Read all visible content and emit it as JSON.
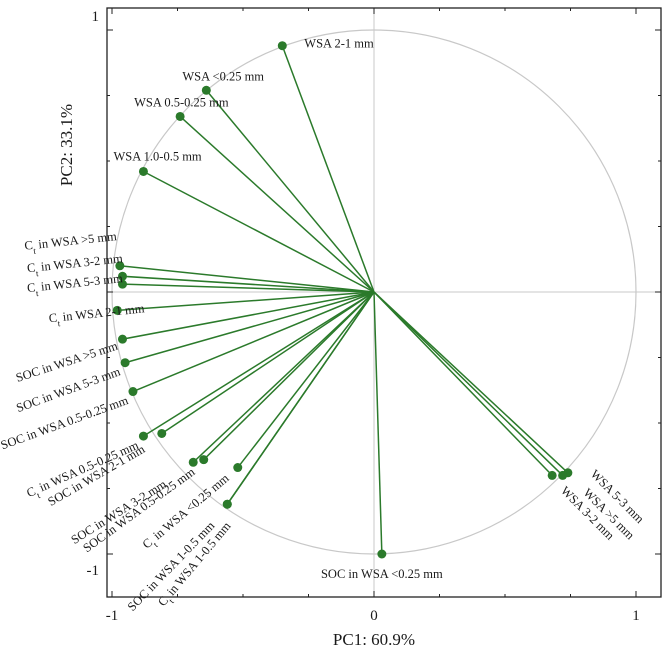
{
  "chart_data": {
    "type": "scatter",
    "subtype": "pca-loadings-biplot",
    "title": "",
    "xlabel": "PC1: 60.9%",
    "ylabel": "PC2: 33.1%",
    "xlim": [
      -1.05,
      1.05
    ],
    "ylim": [
      -1.05,
      1.05
    ],
    "x_ticks": [
      "-1",
      "0",
      "1"
    ],
    "y_ticks": [
      "1",
      "-1"
    ],
    "grid": false,
    "unit_circle": true,
    "colors": {
      "vector": "#2b7a2b",
      "point": "#2b7a2b",
      "circle": "#c8c8c8",
      "zero_lines": "#c8c8c8"
    },
    "points": [
      {
        "label": "WSA 2-1 mm",
        "x": -0.35,
        "y": 0.94
      },
      {
        "label": "WSA <0.25 mm",
        "x": -0.64,
        "y": 0.77
      },
      {
        "label": "WSA 0.5-0.25 mm",
        "x": -0.74,
        "y": 0.67
      },
      {
        "label": "WSA 1.0-0.5 mm",
        "x": -0.88,
        "y": 0.46
      },
      {
        "label": "Ct in WSA >5 mm",
        "x": -0.97,
        "y": 0.1
      },
      {
        "label": "Ct in WSA 3-2 mm",
        "x": -0.96,
        "y": 0.06
      },
      {
        "label": "Ct in WSA 5-3 mm",
        "x": -0.96,
        "y": 0.03
      },
      {
        "label": "Ct in WSA 2-1 mm",
        "x": -0.98,
        "y": -0.07
      },
      {
        "label": "SOC in WSA >5 mm",
        "x": -0.96,
        "y": -0.18
      },
      {
        "label": "SOC in WSA 5-3 mm",
        "x": -0.95,
        "y": -0.27
      },
      {
        "label": "SOC in WSA 0.5-0.25 mm",
        "x": -0.92,
        "y": -0.38
      },
      {
        "label": "Ct in WSA 0.5-0.25 mm",
        "x": -0.88,
        "y": -0.55
      },
      {
        "label": "SOC in WSA 2-1 mm",
        "x": -0.81,
        "y": -0.54
      },
      {
        "label": "SOC in WSA 3-2 mm",
        "x": -0.69,
        "y": -0.65
      },
      {
        "label": "SOC in WSA 0.5-0.25 mm",
        "x": -0.65,
        "y": -0.64
      },
      {
        "label": "Ct in WSA <0.25 mm",
        "x": -0.52,
        "y": -0.67
      },
      {
        "label": "SOC in WSA 1-0.5 mm",
        "x": -0.56,
        "y": -0.81
      },
      {
        "label": "Ct in WSA 1-0.5 mm",
        "x": -0.56,
        "y": -0.81
      },
      {
        "label": "SOC in WSA <0.25 mm",
        "x": 0.03,
        "y": -1.0
      },
      {
        "label": "WSA 5-3 mm",
        "x": 0.74,
        "y": -0.69
      },
      {
        "label": "WSA >5 mm",
        "x": 0.72,
        "y": -0.7
      },
      {
        "label": "WSA 3-2 mm",
        "x": 0.68,
        "y": -0.7
      }
    ]
  }
}
